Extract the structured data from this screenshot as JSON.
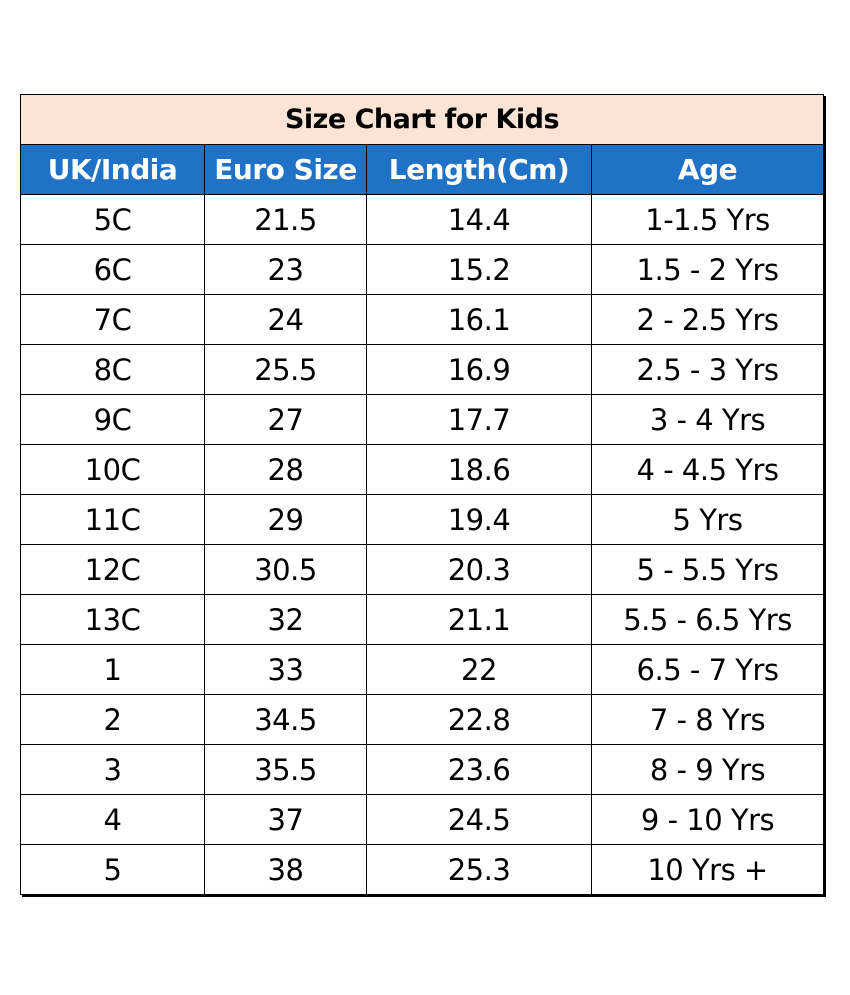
{
  "title": "Size Chart for Kids",
  "colors": {
    "title_bg": "#fbe4d5",
    "header_bg": "#1f72c5",
    "header_text": "#ffffff",
    "border": "#000000"
  },
  "columns": [
    "UK/India",
    "Euro Size",
    "Length(Cm)",
    "Age"
  ],
  "rows": [
    [
      "5C",
      "21.5",
      "14.4",
      "1-1.5 Yrs"
    ],
    [
      "6C",
      "23",
      "15.2",
      "1.5 - 2 Yrs"
    ],
    [
      "7C",
      "24",
      "16.1",
      "2 - 2.5 Yrs"
    ],
    [
      "8C",
      "25.5",
      "16.9",
      "2.5 - 3 Yrs"
    ],
    [
      "9C",
      "27",
      "17.7",
      "3 - 4 Yrs"
    ],
    [
      "10C",
      "28",
      "18.6",
      "4 - 4.5 Yrs"
    ],
    [
      "11C",
      "29",
      "19.4",
      "5 Yrs"
    ],
    [
      "12C",
      "30.5",
      "20.3",
      "5 - 5.5 Yrs"
    ],
    [
      "13C",
      "32",
      "21.1",
      "5.5 - 6.5 Yrs"
    ],
    [
      "1",
      "33",
      "22",
      "6.5 - 7 Yrs"
    ],
    [
      "2",
      "34.5",
      "22.8",
      "7 - 8 Yrs"
    ],
    [
      "3",
      "35.5",
      "23.6",
      "8 - 9 Yrs"
    ],
    [
      "4",
      "37",
      "24.5",
      "9 - 10  Yrs"
    ],
    [
      "5",
      "38",
      "25.3",
      "10 Yrs +"
    ]
  ]
}
